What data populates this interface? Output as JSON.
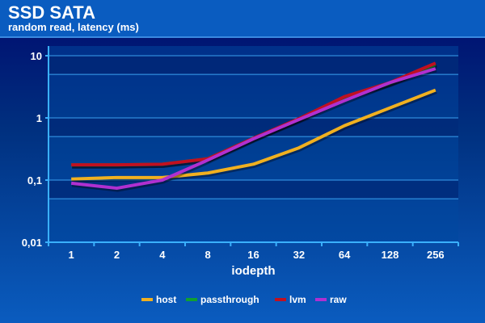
{
  "chart_data": {
    "type": "line",
    "title": "SSD SATA",
    "subtitle": "random read, latency (ms)",
    "xlabel": "iodepth",
    "ylabel": "",
    "yscale": "log",
    "ylim": [
      0.01,
      10
    ],
    "ytick_labels": [
      "10",
      "1",
      "0,1",
      "0,01"
    ],
    "categories": [
      "1",
      "2",
      "4",
      "8",
      "16",
      "32",
      "64",
      "128",
      "256"
    ],
    "series": [
      {
        "name": "host",
        "color": "#f0b020",
        "values": [
          0.104,
          0.11,
          0.11,
          0.13,
          0.18,
          0.33,
          0.75,
          1.45,
          2.8
        ]
      },
      {
        "name": "passthrough",
        "color": "#10a030",
        "values": [
          0.175,
          0.175,
          0.18,
          0.22,
          0.47,
          0.96,
          2.1,
          3.6,
          7.2
        ]
      },
      {
        "name": "lvm",
        "color": "#c01020",
        "values": [
          0.176,
          0.176,
          0.18,
          0.22,
          0.47,
          0.97,
          2.2,
          3.7,
          7.6
        ]
      },
      {
        "name": "raw",
        "color": "#b030d0",
        "values": [
          0.089,
          0.074,
          0.1,
          0.21,
          0.46,
          0.94,
          1.9,
          3.7,
          6.2
        ]
      }
    ],
    "legend": "bottom",
    "grid": true
  }
}
